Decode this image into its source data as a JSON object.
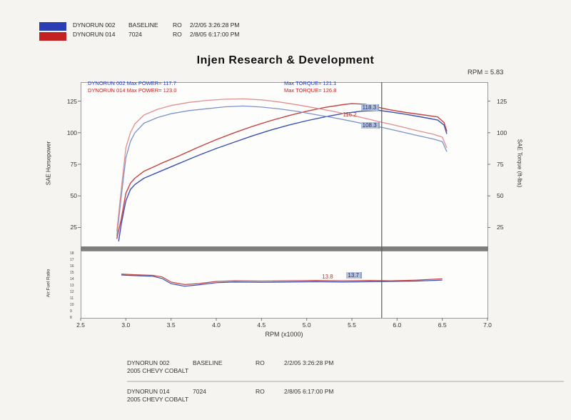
{
  "header": {
    "title": "Injen Research & Development",
    "rpm_readout": "RPM = 5.83",
    "legend": {
      "swatches": [
        {
          "name": "run-002-swatch",
          "color": "#2b3db2"
        },
        {
          "name": "run-014-swatch",
          "color": "#c32222"
        }
      ],
      "rows": [
        {
          "run": "DYNORUN 002",
          "desc": "BASELINE",
          "ro": "RO",
          "datetime": "2/2/05 3:26:28 PM"
        },
        {
          "run": "DYNORUN 014",
          "desc": "7024",
          "ro": "RO",
          "datetime": "2/8/05 6:17:00 PM"
        }
      ]
    }
  },
  "chart_data": {
    "type": "line",
    "main": {
      "title": "",
      "xlabel": "RPM (x1000)",
      "ylabel_left": "SAE Horsepower",
      "ylabel_right": "SAE Torque (ft-lbs)",
      "xlim": [
        2.5,
        7.0
      ],
      "ylim": [
        10,
        140
      ],
      "xticks": [
        "2.5",
        "3.0",
        "3.5",
        "4.0",
        "4.5",
        "5.0",
        "5.5",
        "6.0",
        "6.5",
        "7.0"
      ],
      "yticks": [
        "125",
        "100",
        "75",
        "50",
        "25"
      ],
      "grid": false,
      "cursor_rpm": 5.83,
      "legend": [
        {
          "label": "DYNORUN 002  Max POWER= 117.7",
          "color": "#2336b0",
          "pos": "top-left"
        },
        {
          "label": "DYNORUN 014  Max POWER= 123.0",
          "color": "#c32222",
          "pos": "top-left"
        },
        {
          "label": "Max TORQUE= 121.1",
          "color": "#2336b0",
          "pos": "top-right"
        },
        {
          "label": "Max TORQUE= 126.8",
          "color": "#c32222",
          "pos": "top-right"
        }
      ],
      "cursor_labels": [
        {
          "text": "116.2",
          "style": "plain",
          "color": "#c0392b",
          "rpm": 5.4,
          "value": 114.0
        },
        {
          "text": "118.3",
          "style": "highlight",
          "rpm": 5.6,
          "value": 119.7
        },
        {
          "text": "108.3",
          "style": "highlight",
          "rpm": 5.6,
          "value": 105.5
        }
      ],
      "series": [
        {
          "name": "horsepower-dynorun-002",
          "color": "#3c50b4",
          "width": 1.4,
          "points": [
            [
              2.92,
              14
            ],
            [
              2.95,
              28
            ],
            [
              3.0,
              46
            ],
            [
              3.05,
              55
            ],
            [
              3.1,
              59
            ],
            [
              3.2,
              64
            ],
            [
              3.4,
              70
            ],
            [
              3.6,
              76
            ],
            [
              3.8,
              82
            ],
            [
              4.0,
              87.5
            ],
            [
              4.2,
              92.5
            ],
            [
              4.4,
              97.5
            ],
            [
              4.6,
              102
            ],
            [
              4.8,
              106
            ],
            [
              5.0,
              109.5
            ],
            [
              5.2,
              112.5
            ],
            [
              5.4,
              115.2
            ],
            [
              5.6,
              117
            ],
            [
              5.8,
              117.7
            ],
            [
              5.93,
              116.4
            ],
            [
              6.1,
              114.5
            ],
            [
              6.3,
              112
            ],
            [
              6.45,
              110
            ],
            [
              6.52,
              106
            ],
            [
              6.55,
              99
            ]
          ]
        },
        {
          "name": "horsepower-dynorun-014",
          "color": "#c54343",
          "width": 1.4,
          "points": [
            [
              2.9,
              16
            ],
            [
              2.95,
              32
            ],
            [
              3.0,
              52
            ],
            [
              3.05,
              60
            ],
            [
              3.1,
              64
            ],
            [
              3.2,
              69.5
            ],
            [
              3.4,
              76
            ],
            [
              3.6,
              82
            ],
            [
              3.8,
              88.5
            ],
            [
              4.0,
              94.5
            ],
            [
              4.2,
              100
            ],
            [
              4.4,
              105
            ],
            [
              4.6,
              109.5
            ],
            [
              4.8,
              113.5
            ],
            [
              5.0,
              117
            ],
            [
              5.2,
              120
            ],
            [
              5.4,
              122.2
            ],
            [
              5.5,
              123
            ],
            [
              5.65,
              122.5
            ],
            [
              5.83,
              119.5
            ],
            [
              5.93,
              118
            ],
            [
              6.1,
              116
            ],
            [
              6.3,
              114
            ],
            [
              6.45,
              112.5
            ],
            [
              6.52,
              108
            ],
            [
              6.55,
              101
            ]
          ]
        },
        {
          "name": "torque-dynorun-002",
          "color": "#7d92cc",
          "width": 1.3,
          "points": [
            [
              2.9,
              18
            ],
            [
              2.95,
              50
            ],
            [
              3.0,
              80
            ],
            [
              3.05,
              93
            ],
            [
              3.1,
              100
            ],
            [
              3.2,
              107.5
            ],
            [
              3.35,
              112
            ],
            [
              3.5,
              115
            ],
            [
              3.7,
              117.5
            ],
            [
              3.9,
              119
            ],
            [
              4.1,
              120.5
            ],
            [
              4.3,
              121.1
            ],
            [
              4.5,
              120.3
            ],
            [
              4.7,
              118.8
            ],
            [
              4.9,
              116.8
            ],
            [
              5.1,
              114.3
            ],
            [
              5.3,
              111.8
            ],
            [
              5.5,
              109
            ],
            [
              5.7,
              106
            ],
            [
              5.83,
              104.2
            ],
            [
              6.0,
              101.5
            ],
            [
              6.2,
              98.2
            ],
            [
              6.4,
              95
            ],
            [
              6.5,
              93
            ],
            [
              6.55,
              85
            ]
          ]
        },
        {
          "name": "torque-dynorun-014",
          "color": "#df9090",
          "width": 1.3,
          "points": [
            [
              2.9,
              22
            ],
            [
              2.95,
              56
            ],
            [
              3.0,
              88
            ],
            [
              3.05,
              100
            ],
            [
              3.1,
              107
            ],
            [
              3.2,
              114
            ],
            [
              3.35,
              118.5
            ],
            [
              3.5,
              121.5
            ],
            [
              3.7,
              124
            ],
            [
              3.9,
              125.6
            ],
            [
              4.1,
              126.5
            ],
            [
              4.3,
              126.8
            ],
            [
              4.5,
              126
            ],
            [
              4.7,
              124.3
            ],
            [
              4.9,
              122
            ],
            [
              5.1,
              119.5
            ],
            [
              5.3,
              116.8
            ],
            [
              5.5,
              113.8
            ],
            [
              5.7,
              110.5
            ],
            [
              5.83,
              108.3
            ],
            [
              6.0,
              105.5
            ],
            [
              6.2,
              102
            ],
            [
              6.4,
              98.8
            ],
            [
              6.5,
              96.5
            ],
            [
              6.55,
              88
            ]
          ]
        }
      ]
    },
    "afr": {
      "ylabel_left": "Air:Fuel Ratio",
      "xlim": [
        2.5,
        7.0
      ],
      "ylim": [
        8,
        18.5
      ],
      "yticks": [
        "18",
        "17",
        "16",
        "15",
        "14",
        "13",
        "12",
        "11",
        "10",
        "9",
        "8"
      ],
      "grid": false,
      "cursor_labels": [
        {
          "text": "13.8",
          "style": "plain",
          "color": "#c0392b",
          "rpm": 5.17,
          "value": 14.35
        },
        {
          "text": "13.7",
          "style": "highlight",
          "rpm": 5.44,
          "value": 14.6
        }
      ],
      "series": [
        {
          "name": "afr-dynorun-002",
          "color": "#3c50b4",
          "width": 1.2,
          "points": [
            [
              2.95,
              14.7
            ],
            [
              3.1,
              14.6
            ],
            [
              3.3,
              14.5
            ],
            [
              3.4,
              14.15
            ],
            [
              3.5,
              13.35
            ],
            [
              3.65,
              12.95
            ],
            [
              3.8,
              13.15
            ],
            [
              4.0,
              13.5
            ],
            [
              4.2,
              13.6
            ],
            [
              4.5,
              13.55
            ],
            [
              4.8,
              13.6
            ],
            [
              5.1,
              13.65
            ],
            [
              5.4,
              13.6
            ],
            [
              5.7,
              13.65
            ],
            [
              5.93,
              13.7
            ],
            [
              6.2,
              13.75
            ],
            [
              6.5,
              13.9
            ]
          ]
        },
        {
          "name": "afr-dynorun-014",
          "color": "#c54343",
          "width": 1.2,
          "points": [
            [
              2.95,
              14.85
            ],
            [
              3.1,
              14.75
            ],
            [
              3.3,
              14.65
            ],
            [
              3.4,
              14.4
            ],
            [
              3.5,
              13.6
            ],
            [
              3.65,
              13.2
            ],
            [
              3.8,
              13.35
            ],
            [
              4.0,
              13.7
            ],
            [
              4.2,
              13.8
            ],
            [
              4.5,
              13.75
            ],
            [
              4.8,
              13.8
            ],
            [
              5.1,
              13.85
            ],
            [
              5.4,
              13.8
            ],
            [
              5.7,
              13.85
            ],
            [
              5.93,
              13.8
            ],
            [
              6.2,
              13.9
            ],
            [
              6.5,
              14.1
            ]
          ]
        }
      ]
    }
  },
  "footer": {
    "rows": [
      {
        "run": "DYNORUN 002",
        "desc": "BASELINE",
        "ro": "RO",
        "datetime": "2/2/05 3:26:28 PM",
        "vehicle": "2005 CHEVY COBALT"
      },
      {
        "run": "DYNORUN 014",
        "desc": "7024",
        "ro": "RO",
        "datetime": "2/8/05 6:17:00 PM",
        "vehicle": "2005 CHEVY COBALT"
      }
    ]
  }
}
